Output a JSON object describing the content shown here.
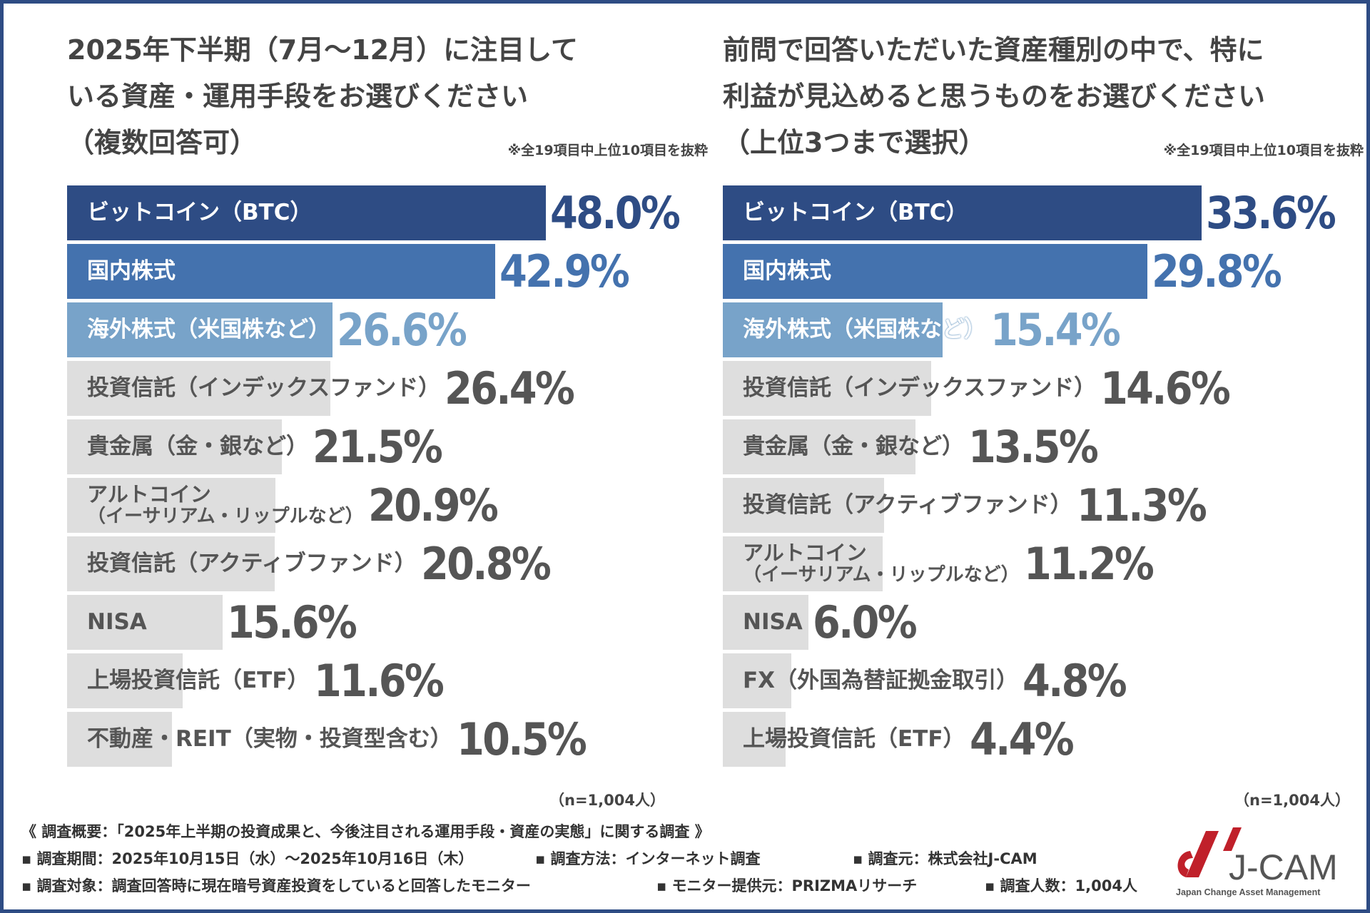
{
  "chart_data": [
    {
      "type": "bar",
      "orientation": "horizontal",
      "title": [
        "2025年下半期（7月～12月）に注目して",
        "いる資産・運用手段をお選びください",
        "（複数回答可）"
      ],
      "note": "※全19項目中上位10項目を抜粋",
      "n": "（n=1,004人）",
      "categories": [
        [
          "ビットコイン（BTC）"
        ],
        [
          "国内株式"
        ],
        [
          "海外株式（米国株など）"
        ],
        [
          "投資信託（インデックスファンド）"
        ],
        [
          "貴金属（金・銀など）"
        ],
        [
          "アルトコイン",
          "（イーサリアム・リップルなど）"
        ],
        [
          "投資信託（アクティブファンド）"
        ],
        [
          "NISA"
        ],
        [
          "上場投資信託（ETF）"
        ],
        [
          "不動産・REIT（実物・投資型含む）"
        ]
      ],
      "values": [
        48.0,
        42.9,
        26.6,
        26.4,
        21.5,
        20.9,
        20.8,
        15.6,
        11.6,
        10.5
      ],
      "value_labels": [
        "48.0%",
        "42.9%",
        "26.6%",
        "26.4%",
        "21.5%",
        "20.9%",
        "20.8%",
        "15.6%",
        "11.6%",
        "10.5%"
      ]
    },
    {
      "type": "bar",
      "orientation": "horizontal",
      "title": [
        "前問で回答いただいた資産種別の中で、特に",
        "利益が見込めると思うものをお選びください",
        "（上位3つまで選択）"
      ],
      "note": "※全19項目中上位10項目を抜粋",
      "n": "（n=1,004人）",
      "categories": [
        [
          "ビットコイン（BTC）"
        ],
        [
          "国内株式"
        ],
        [
          "海外株式（米国株など）"
        ],
        [
          "投資信託（インデックスファンド）"
        ],
        [
          "貴金属（金・銀など）"
        ],
        [
          "投資信託（アクティブファンド）"
        ],
        [
          "アルトコイン",
          "（イーサリアム・リップルなど）"
        ],
        [
          "NISA"
        ],
        [
          "FX（外国為替証拠金取引）"
        ],
        [
          "上場投資信託（ETF）"
        ]
      ],
      "values": [
        33.6,
        29.8,
        15.4,
        14.6,
        13.5,
        11.3,
        11.2,
        6.0,
        4.8,
        4.4
      ],
      "value_labels": [
        "33.6%",
        "29.8%",
        "15.4%",
        "14.6%",
        "13.5%",
        "11.3%",
        "11.2%",
        "6.0%",
        "4.8%",
        "4.4%"
      ]
    }
  ],
  "colors": {
    "rank1": "#2e4c84",
    "rank2": "#4472ae",
    "rank3": "#78a3c9",
    "other": "#dedede",
    "other_text": "#555555",
    "frame": "#2e4c84"
  },
  "footer": {
    "summary": "《 調査概要：「2025年上半期の投資成果と、今後注目される運用手段・資産の実態」に関する調査 》",
    "period": "▪ 調査期間：2025年10月15日（水）～2025年10月16日（木）",
    "method": "▪ 調査方法：インターネット調査",
    "source": "▪ 調査元：株式会社J-CAM",
    "target": "▪ 調査対象：調査回答時に現在暗号資産投資をしていると回答したモニター",
    "provider": "▪ モニター提供元：PRIZMAリサーチ",
    "count": "▪ 調査人数：1,004人"
  },
  "logo": {
    "name": "J-CAM",
    "tagline": "Japan Change Asset Management"
  }
}
